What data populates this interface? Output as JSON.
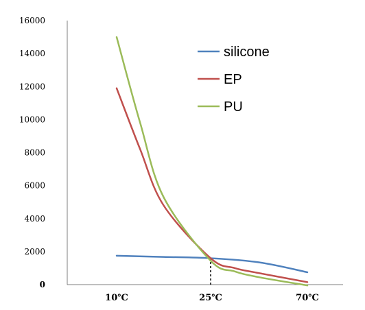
{
  "chart_data": {
    "type": "line",
    "x_categories": [
      "10℃",
      "25℃",
      "70℃"
    ],
    "ylim": [
      0,
      16000
    ],
    "yticks": [
      0,
      2000,
      4000,
      6000,
      8000,
      10000,
      12000,
      14000,
      16000
    ],
    "y_tick_labels": [
      "0",
      "2000",
      "4000",
      "6000",
      "8000",
      "10000",
      "12000",
      "14000",
      "16000"
    ],
    "grid": false,
    "legend_position": "top-right",
    "series": [
      {
        "name": "silicone",
        "color": "#4f81bd",
        "points": [
          {
            "x": 0,
            "y": 1750
          },
          {
            "x": 0.5,
            "y": 1680
          },
          {
            "x": 1,
            "y": 1600
          },
          {
            "x": 1.5,
            "y": 1350
          },
          {
            "x": 2,
            "y": 750
          }
        ]
      },
      {
        "name": "EP",
        "color": "#c0504d",
        "points": [
          {
            "x": 0,
            "y": 11900
          },
          {
            "x": 0.25,
            "y": 8200
          },
          {
            "x": 0.5,
            "y": 4800
          },
          {
            "x": 1,
            "y": 1600
          },
          {
            "x": 1.25,
            "y": 1000
          },
          {
            "x": 1.5,
            "y": 700
          },
          {
            "x": 2,
            "y": 150
          }
        ]
      },
      {
        "name": "PU",
        "color": "#9bbb59",
        "points": [
          {
            "x": 0,
            "y": 15000
          },
          {
            "x": 0.25,
            "y": 9800
          },
          {
            "x": 0.5,
            "y": 5300
          },
          {
            "x": 1,
            "y": 1450
          },
          {
            "x": 1.25,
            "y": 800
          },
          {
            "x": 1.5,
            "y": 450
          },
          {
            "x": 2,
            "y": -50
          }
        ]
      }
    ],
    "annotations": [
      {
        "type": "dashed-vertical-line",
        "at_category": "25℃",
        "from_y": 0,
        "to_y": 1600
      }
    ]
  }
}
